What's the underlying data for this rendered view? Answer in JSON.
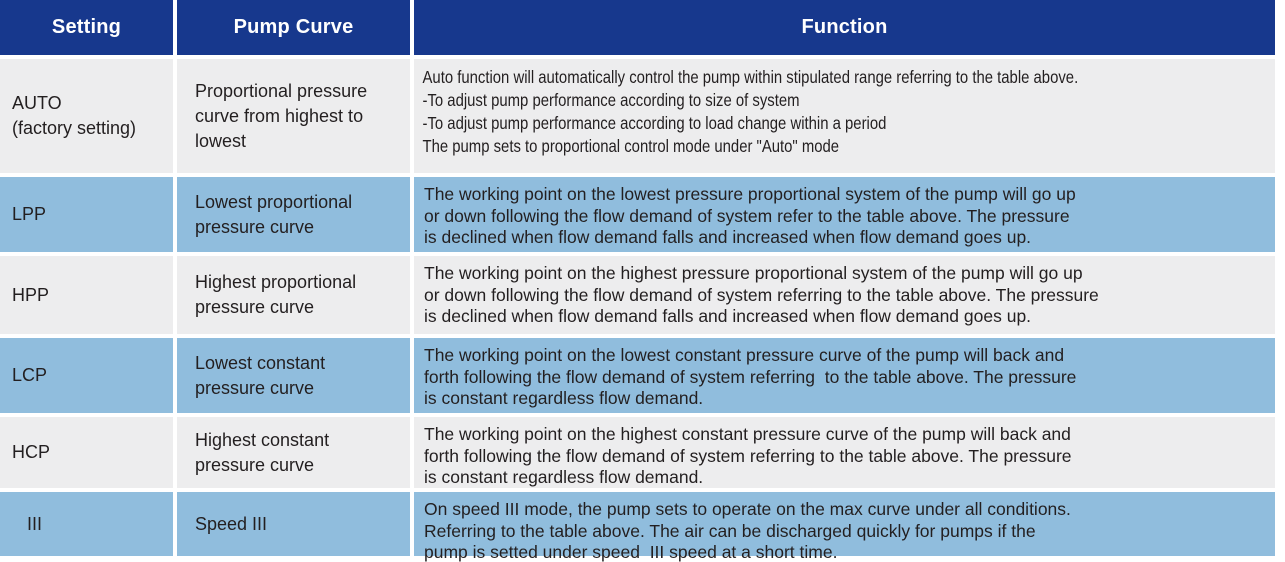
{
  "colors": {
    "header_bg": "#17388d",
    "header_text": "#ffffff",
    "row_blue": "#90bddd",
    "row_gray": "#ededee",
    "body_text": "#231f20"
  },
  "table": {
    "headers": [
      "Setting",
      "Pump Curve",
      "Function"
    ],
    "rows": [
      {
        "setting": [
          "AUTO",
          "(factory setting)"
        ],
        "pump_curve": [
          "Proportional pressure",
          "curve from highest to",
          "lowest"
        ],
        "function": [
          "Auto function will automatically control the pump within stipulated range referring to the table above.",
          "-To adjust pump performance according to size of system",
          "-To adjust pump performance according to load change within a period",
          "The pump sets to proportional control mode under \"Auto\" mode"
        ]
      },
      {
        "setting": [
          "LPP"
        ],
        "pump_curve": [
          "Lowest proportional",
          "pressure curve"
        ],
        "function": [
          "The working point on the lowest pressure proportional system of the pump will go up",
          "or down following the flow demand of system refer to the table above. The pressure",
          "is declined when flow demand falls and increased when flow demand goes up."
        ]
      },
      {
        "setting": [
          "HPP"
        ],
        "pump_curve": [
          "Highest proportional",
          "pressure curve"
        ],
        "function": [
          "The working point on the highest pressure proportional system of the pump will go up",
          "or down following the flow demand of system referring to the table above. The pressure",
          "is declined when flow demand falls and increased when flow demand goes up."
        ]
      },
      {
        "setting": [
          "LCP"
        ],
        "pump_curve": [
          "Lowest constant",
          "pressure curve"
        ],
        "function": [
          "The working point on the lowest constant pressure curve of the pump will back and",
          "forth following the flow demand of system referring  to the table above. The pressure",
          "is constant regardless flow demand."
        ]
      },
      {
        "setting": [
          "HCP"
        ],
        "pump_curve": [
          "Highest constant",
          "pressure curve"
        ],
        "function": [
          "The working point on the highest constant pressure curve of the pump will back and",
          "forth following the flow demand of system referring to the table above. The pressure",
          "is constant regardless flow demand."
        ]
      },
      {
        "setting": [
          "III"
        ],
        "pump_curve": [
          "Speed III"
        ],
        "function": [
          "On speed III mode, the pump sets to operate on the max curve under all conditions.",
          "Referring to the table above. The air can be discharged quickly for pumps if the",
          "pump is setted under speed  III speed at a short time."
        ]
      }
    ]
  }
}
